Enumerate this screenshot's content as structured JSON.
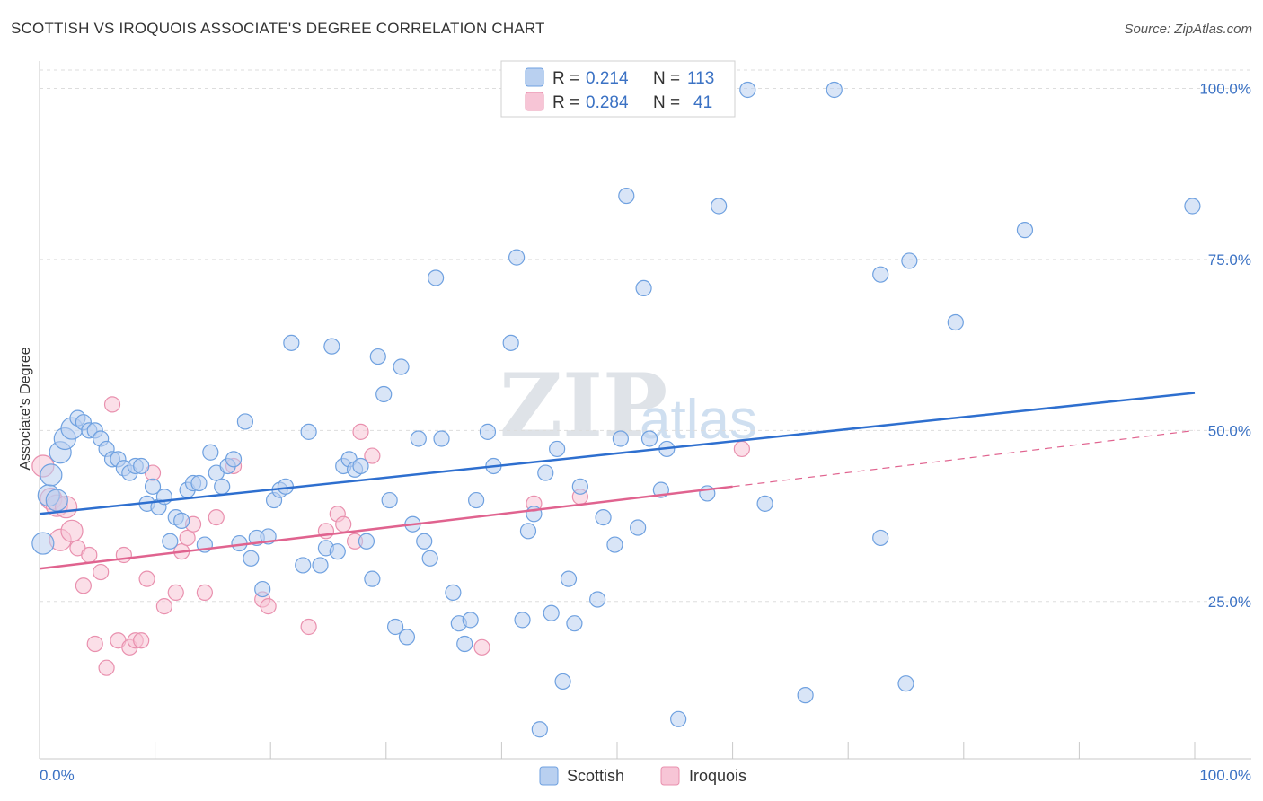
{
  "header": {
    "title": "SCOTTISH VS IROQUOIS ASSOCIATE'S DEGREE CORRELATION CHART",
    "source": "Source: ZipAtlas.com"
  },
  "watermark": {
    "zip": "ZIP",
    "atlas": "atlas"
  },
  "colors": {
    "scottish": "#6fa1e0",
    "scottish_fill": "#b9d0f0",
    "scottish_line": "#2e6fcf",
    "iroquois": "#e990ae",
    "iroquois_fill": "#f7c5d6",
    "iroquois_line": "#e0638f",
    "grid": "#dddddd",
    "axis_label": "#3b72c4"
  },
  "chart_data": {
    "type": "scatter",
    "title": "SCOTTISH VS IROQUOIS ASSOCIATE'S DEGREE CORRELATION CHART",
    "xlabel": "",
    "ylabel": "Associate's Degree",
    "xlim": [
      0,
      100
    ],
    "ylim": [
      2,
      104
    ],
    "x_tick_labels": [
      "0.0%",
      "100.0%"
    ],
    "y_ticks": [
      25,
      50,
      75,
      100
    ],
    "y_tick_labels": [
      "25.0%",
      "50.0%",
      "75.0%",
      "100.0%"
    ],
    "grid": true,
    "legend_position": "top-center",
    "legend": [
      {
        "name": "Scottish",
        "r_label": "R =",
        "r": "0.214",
        "n_label": "N =",
        "n": "113"
      },
      {
        "name": "Iroquois",
        "r_label": "R =",
        "r": "0.284",
        "n_label": "N =",
        "n": "41"
      }
    ],
    "series": [
      {
        "name": "Scottish",
        "trend": {
          "x": [
            0,
            100
          ],
          "y": [
            37.8,
            55.5
          ]
        },
        "points": [
          [
            0.3,
            33.5
          ],
          [
            0.8,
            40.5
          ],
          [
            1.0,
            43.5
          ],
          [
            1.5,
            39.8
          ],
          [
            1.8,
            46.8
          ],
          [
            2.2,
            48.8
          ],
          [
            2.8,
            50.3
          ],
          [
            3.3,
            51.8
          ],
          [
            3.8,
            51.2
          ],
          [
            4.3,
            50.0
          ],
          [
            4.8,
            50.0
          ],
          [
            5.3,
            48.8
          ],
          [
            5.8,
            47.3
          ],
          [
            6.3,
            45.8
          ],
          [
            6.8,
            45.8
          ],
          [
            7.3,
            44.5
          ],
          [
            7.8,
            43.8
          ],
          [
            8.3,
            44.8
          ],
          [
            8.8,
            44.8
          ],
          [
            9.3,
            39.3
          ],
          [
            9.8,
            41.8
          ],
          [
            10.3,
            38.8
          ],
          [
            10.8,
            40.3
          ],
          [
            11.3,
            33.8
          ],
          [
            11.8,
            37.3
          ],
          [
            12.3,
            36.8
          ],
          [
            12.8,
            41.3
          ],
          [
            13.3,
            42.3
          ],
          [
            13.8,
            42.3
          ],
          [
            14.3,
            33.3
          ],
          [
            14.8,
            46.8
          ],
          [
            15.3,
            43.8
          ],
          [
            15.8,
            41.8
          ],
          [
            16.3,
            44.8
          ],
          [
            16.8,
            45.8
          ],
          [
            17.3,
            33.5
          ],
          [
            17.8,
            51.3
          ],
          [
            18.3,
            31.3
          ],
          [
            18.8,
            34.3
          ],
          [
            19.3,
            26.8
          ],
          [
            19.8,
            34.5
          ],
          [
            20.3,
            39.8
          ],
          [
            20.8,
            41.3
          ],
          [
            21.3,
            41.8
          ],
          [
            21.8,
            62.8
          ],
          [
            22.8,
            30.3
          ],
          [
            23.3,
            49.8
          ],
          [
            24.3,
            30.3
          ],
          [
            24.8,
            32.8
          ],
          [
            25.3,
            62.3
          ],
          [
            25.8,
            32.3
          ],
          [
            26.3,
            44.8
          ],
          [
            26.8,
            45.8
          ],
          [
            27.3,
            44.3
          ],
          [
            27.8,
            44.8
          ],
          [
            28.3,
            33.8
          ],
          [
            28.8,
            28.3
          ],
          [
            29.3,
            60.8
          ],
          [
            29.8,
            55.3
          ],
          [
            30.3,
            39.8
          ],
          [
            30.8,
            21.3
          ],
          [
            31.3,
            59.3
          ],
          [
            31.8,
            19.8
          ],
          [
            32.3,
            36.3
          ],
          [
            32.8,
            48.8
          ],
          [
            33.3,
            33.8
          ],
          [
            33.8,
            31.3
          ],
          [
            34.3,
            72.3
          ],
          [
            34.8,
            48.8
          ],
          [
            35.8,
            26.3
          ],
          [
            36.3,
            21.8
          ],
          [
            36.8,
            18.8
          ],
          [
            37.3,
            22.3
          ],
          [
            37.8,
            39.8
          ],
          [
            38.8,
            49.8
          ],
          [
            39.3,
            44.8
          ],
          [
            40.8,
            62.8
          ],
          [
            41.3,
            75.3
          ],
          [
            41.8,
            22.3
          ],
          [
            42.3,
            35.3
          ],
          [
            42.8,
            37.8
          ],
          [
            43.3,
            6.3
          ],
          [
            43.8,
            43.8
          ],
          [
            44.3,
            23.3
          ],
          [
            44.8,
            47.3
          ],
          [
            45.3,
            13.3
          ],
          [
            45.8,
            28.3
          ],
          [
            46.3,
            21.8
          ],
          [
            46.8,
            41.8
          ],
          [
            48.3,
            25.3
          ],
          [
            48.8,
            37.3
          ],
          [
            49.8,
            33.3
          ],
          [
            50.3,
            48.8
          ],
          [
            50.8,
            84.3
          ],
          [
            51.8,
            35.8
          ],
          [
            52.3,
            70.8
          ],
          [
            52.8,
            48.8
          ],
          [
            53.8,
            41.3
          ],
          [
            54.3,
            47.3
          ],
          [
            55.3,
            7.8
          ],
          [
            57.8,
            40.8
          ],
          [
            58.8,
            82.8
          ],
          [
            61.3,
            99.8
          ],
          [
            62.8,
            39.3
          ],
          [
            66.3,
            11.3
          ],
          [
            68.8,
            99.8
          ],
          [
            72.8,
            72.8
          ],
          [
            72.8,
            34.3
          ],
          [
            75.0,
            13.0
          ],
          [
            75.3,
            74.8
          ],
          [
            79.3,
            65.8
          ],
          [
            85.3,
            79.3
          ],
          [
            99.8,
            82.8
          ]
        ]
      },
      {
        "name": "Iroquois",
        "trend": {
          "x": [
            0,
            60
          ],
          "y": [
            29.8,
            41.8
          ]
        },
        "trend_extension": {
          "x": [
            60,
            100
          ],
          "y": [
            41.8,
            50.0
          ]
        },
        "points": [
          [
            0.3,
            44.8
          ],
          [
            1.0,
            40.0
          ],
          [
            1.5,
            39.0
          ],
          [
            1.8,
            34.0
          ],
          [
            2.3,
            38.8
          ],
          [
            2.8,
            35.3
          ],
          [
            3.3,
            32.8
          ],
          [
            3.8,
            27.3
          ],
          [
            4.3,
            31.8
          ],
          [
            4.8,
            18.8
          ],
          [
            5.3,
            29.3
          ],
          [
            5.8,
            15.3
          ],
          [
            6.3,
            53.8
          ],
          [
            6.8,
            19.3
          ],
          [
            7.3,
            31.8
          ],
          [
            7.8,
            18.3
          ],
          [
            8.3,
            19.3
          ],
          [
            8.8,
            19.3
          ],
          [
            9.3,
            28.3
          ],
          [
            9.8,
            43.8
          ],
          [
            10.8,
            24.3
          ],
          [
            11.8,
            26.3
          ],
          [
            12.3,
            32.3
          ],
          [
            12.8,
            34.3
          ],
          [
            13.3,
            36.3
          ],
          [
            14.3,
            26.3
          ],
          [
            15.3,
            37.3
          ],
          [
            16.8,
            44.8
          ],
          [
            19.3,
            25.3
          ],
          [
            19.8,
            24.3
          ],
          [
            23.3,
            21.3
          ],
          [
            24.8,
            35.3
          ],
          [
            25.8,
            37.8
          ],
          [
            26.3,
            36.3
          ],
          [
            27.3,
            33.8
          ],
          [
            27.8,
            49.8
          ],
          [
            28.8,
            46.3
          ],
          [
            38.3,
            18.3
          ],
          [
            42.8,
            39.3
          ],
          [
            46.8,
            40.3
          ],
          [
            60.8,
            47.3
          ]
        ]
      }
    ]
  },
  "bottom_legend": [
    {
      "label": "Scottish"
    },
    {
      "label": "Iroquois"
    }
  ]
}
